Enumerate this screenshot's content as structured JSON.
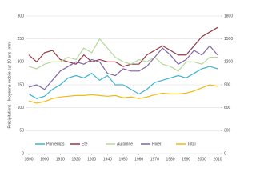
{
  "chart_data": {
    "type": "line",
    "y_label": "Précipitations - Moyenne mobile sur 10 ans (mm)",
    "x": [
      1890,
      1895,
      1900,
      1905,
      1910,
      1915,
      1920,
      1925,
      1930,
      1935,
      1940,
      1945,
      1950,
      1955,
      1960,
      1965,
      1970,
      1975,
      1980,
      1985,
      1990,
      1995,
      2000,
      2005,
      2010
    ],
    "xlim": [
      1890,
      2010
    ],
    "xticks": [
      1890,
      1900,
      1910,
      1920,
      1930,
      1940,
      1950,
      1960,
      1970,
      1980,
      1990,
      2000,
      2010
    ],
    "ylim": [
      0,
      300
    ],
    "yticks": [
      0,
      50,
      100,
      150,
      200,
      250,
      300
    ],
    "y2lim": [
      0,
      1800
    ],
    "y2ticks": [
      0,
      300,
      600,
      900,
      1200,
      1500,
      1800
    ],
    "grid": true,
    "legend": "bottom",
    "series": [
      {
        "name": "Printemps",
        "color": "#3bb3d0",
        "values": [
          130,
          120,
          125,
          140,
          150,
          165,
          170,
          165,
          175,
          160,
          170,
          150,
          150,
          140,
          130,
          140,
          155,
          160,
          165,
          170,
          165,
          175,
          185,
          190,
          185
        ]
      },
      {
        "name": "Eté",
        "color": "#943744",
        "values": [
          215,
          200,
          220,
          225,
          205,
          200,
          195,
          215,
          200,
          205,
          200,
          200,
          190,
          195,
          195,
          215,
          225,
          235,
          225,
          215,
          215,
          235,
          255,
          265,
          275
        ]
      },
      {
        "name": "Automne",
        "color": "#b5d89a",
        "values": [
          190,
          185,
          195,
          200,
          200,
          210,
          205,
          230,
          220,
          250,
          230,
          210,
          200,
          195,
          205,
          200,
          210,
          195,
          190,
          180,
          200,
          200,
          195,
          210,
          210
        ]
      },
      {
        "name": "Hiver",
        "color": "#8064a2",
        "values": [
          145,
          150,
          140,
          160,
          180,
          190,
          200,
          195,
          205,
          200,
          175,
          170,
          185,
          180,
          180,
          190,
          210,
          230,
          215,
          195,
          205,
          225,
          215,
          235,
          215
        ]
      },
      {
        "name": "Total",
        "color": "#f2b90f",
        "axis": "y2",
        "values": [
          690,
          660,
          680,
          720,
          740,
          750,
          760,
          760,
          770,
          760,
          750,
          760,
          730,
          740,
          720,
          740,
          770,
          790,
          780,
          780,
          790,
          820,
          860,
          900,
          880
        ]
      }
    ]
  }
}
